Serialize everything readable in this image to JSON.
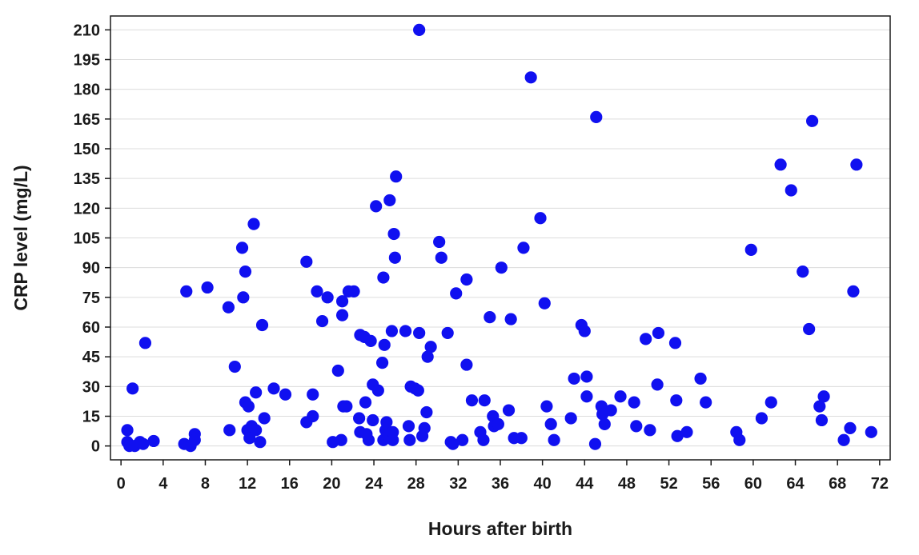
{
  "chart_data": {
    "type": "scatter",
    "title": "",
    "xlabel": "Hours after birth",
    "ylabel": "CRP level (mg/L)",
    "xlim": [
      -1,
      73
    ],
    "ylim": [
      -7,
      217
    ],
    "x_ticks": [
      0,
      4,
      8,
      12,
      16,
      20,
      24,
      28,
      32,
      36,
      40,
      44,
      48,
      52,
      56,
      60,
      64,
      68,
      72
    ],
    "y_ticks": [
      0,
      15,
      30,
      45,
      60,
      75,
      90,
      105,
      120,
      135,
      150,
      165,
      180,
      195,
      210
    ],
    "grid": "horizontal",
    "legend": "none",
    "marker_color": "#1010f0",
    "series": [
      {
        "points": [
          [
            0.6,
            8
          ],
          [
            0.6,
            2
          ],
          [
            0.8,
            0
          ],
          [
            1.1,
            29
          ],
          [
            1.3,
            0
          ],
          [
            1.8,
            2
          ],
          [
            2.1,
            1
          ],
          [
            2.3,
            52
          ],
          [
            3.1,
            2.5
          ],
          [
            6.0,
            1
          ],
          [
            6.2,
            78
          ],
          [
            6.6,
            0
          ],
          [
            7.0,
            6
          ],
          [
            7.0,
            3
          ],
          [
            8.2,
            80
          ],
          [
            10.2,
            70
          ],
          [
            10.3,
            8
          ],
          [
            10.8,
            40
          ],
          [
            11.5,
            100
          ],
          [
            11.6,
            75
          ],
          [
            11.8,
            88
          ],
          [
            11.8,
            22
          ],
          [
            12.0,
            8
          ],
          [
            12.1,
            20
          ],
          [
            12.2,
            4
          ],
          [
            12.4,
            10
          ],
          [
            12.6,
            112
          ],
          [
            12.8,
            27
          ],
          [
            12.8,
            8
          ],
          [
            13.2,
            2
          ],
          [
            13.4,
            61
          ],
          [
            13.6,
            14
          ],
          [
            14.5,
            29
          ],
          [
            15.6,
            26
          ],
          [
            17.6,
            93
          ],
          [
            17.6,
            12
          ],
          [
            18.2,
            26
          ],
          [
            18.2,
            15
          ],
          [
            18.6,
            78
          ],
          [
            19.1,
            63
          ],
          [
            19.6,
            75
          ],
          [
            20.1,
            2
          ],
          [
            20.6,
            38
          ],
          [
            20.9,
            3
          ],
          [
            21.0,
            66
          ],
          [
            21.0,
            73
          ],
          [
            21.1,
            20
          ],
          [
            21.4,
            20
          ],
          [
            21.6,
            78
          ],
          [
            22.1,
            78
          ],
          [
            22.6,
            14
          ],
          [
            22.7,
            56
          ],
          [
            22.7,
            7
          ],
          [
            23.1,
            55
          ],
          [
            23.2,
            22
          ],
          [
            23.3,
            6
          ],
          [
            23.5,
            3
          ],
          [
            23.7,
            53
          ],
          [
            23.9,
            31
          ],
          [
            23.9,
            13
          ],
          [
            24.2,
            121
          ],
          [
            24.4,
            28
          ],
          [
            24.8,
            42
          ],
          [
            24.9,
            3
          ],
          [
            24.9,
            85
          ],
          [
            25.0,
            51
          ],
          [
            25.1,
            8
          ],
          [
            25.2,
            12
          ],
          [
            25.4,
            5
          ],
          [
            25.5,
            124
          ],
          [
            25.7,
            58
          ],
          [
            25.8,
            3
          ],
          [
            25.8,
            7
          ],
          [
            25.9,
            107
          ],
          [
            26.0,
            95
          ],
          [
            26.1,
            136
          ],
          [
            27.0,
            58
          ],
          [
            27.3,
            10
          ],
          [
            27.4,
            3
          ],
          [
            27.5,
            30
          ],
          [
            27.9,
            29
          ],
          [
            28.2,
            28
          ],
          [
            28.3,
            57
          ],
          [
            28.3,
            210
          ],
          [
            28.6,
            5
          ],
          [
            28.8,
            9
          ],
          [
            29.0,
            17
          ],
          [
            29.1,
            45
          ],
          [
            29.4,
            50
          ],
          [
            30.2,
            103
          ],
          [
            30.4,
            95
          ],
          [
            31.0,
            57
          ],
          [
            31.3,
            2
          ],
          [
            31.5,
            1
          ],
          [
            31.8,
            77
          ],
          [
            32.4,
            3
          ],
          [
            32.8,
            84
          ],
          [
            32.8,
            41
          ],
          [
            33.3,
            23
          ],
          [
            34.1,
            7
          ],
          [
            34.4,
            3
          ],
          [
            34.5,
            23
          ],
          [
            35.0,
            65
          ],
          [
            35.3,
            15
          ],
          [
            35.4,
            10
          ],
          [
            35.8,
            11
          ],
          [
            36.1,
            90
          ],
          [
            36.8,
            18
          ],
          [
            37.0,
            64
          ],
          [
            37.3,
            4
          ],
          [
            38.0,
            4
          ],
          [
            38.2,
            100
          ],
          [
            38.9,
            186
          ],
          [
            39.8,
            115
          ],
          [
            40.2,
            72
          ],
          [
            40.4,
            20
          ],
          [
            40.8,
            11
          ],
          [
            41.1,
            3
          ],
          [
            42.7,
            14
          ],
          [
            43.0,
            34
          ],
          [
            43.7,
            61
          ],
          [
            44.0,
            58
          ],
          [
            44.2,
            35
          ],
          [
            44.2,
            25
          ],
          [
            45.0,
            1
          ],
          [
            45.1,
            166
          ],
          [
            45.6,
            20
          ],
          [
            45.7,
            16
          ],
          [
            45.9,
            11
          ],
          [
            46.5,
            18
          ],
          [
            47.4,
            25
          ],
          [
            48.7,
            22
          ],
          [
            48.9,
            10
          ],
          [
            49.8,
            54
          ],
          [
            50.2,
            8
          ],
          [
            50.9,
            31
          ],
          [
            51.0,
            57
          ],
          [
            52.6,
            52
          ],
          [
            52.7,
            23
          ],
          [
            52.8,
            5
          ],
          [
            53.7,
            7
          ],
          [
            55.0,
            34
          ],
          [
            55.5,
            22
          ],
          [
            58.4,
            7
          ],
          [
            58.7,
            3
          ],
          [
            59.8,
            99
          ],
          [
            60.8,
            14
          ],
          [
            61.7,
            22
          ],
          [
            62.6,
            142
          ],
          [
            63.6,
            129
          ],
          [
            64.7,
            88
          ],
          [
            65.3,
            59
          ],
          [
            65.6,
            164
          ],
          [
            66.3,
            20
          ],
          [
            66.5,
            13
          ],
          [
            66.7,
            25
          ],
          [
            68.6,
            3
          ],
          [
            69.2,
            9
          ],
          [
            69.5,
            78
          ],
          [
            69.8,
            142
          ],
          [
            71.2,
            7
          ]
        ]
      }
    ]
  }
}
